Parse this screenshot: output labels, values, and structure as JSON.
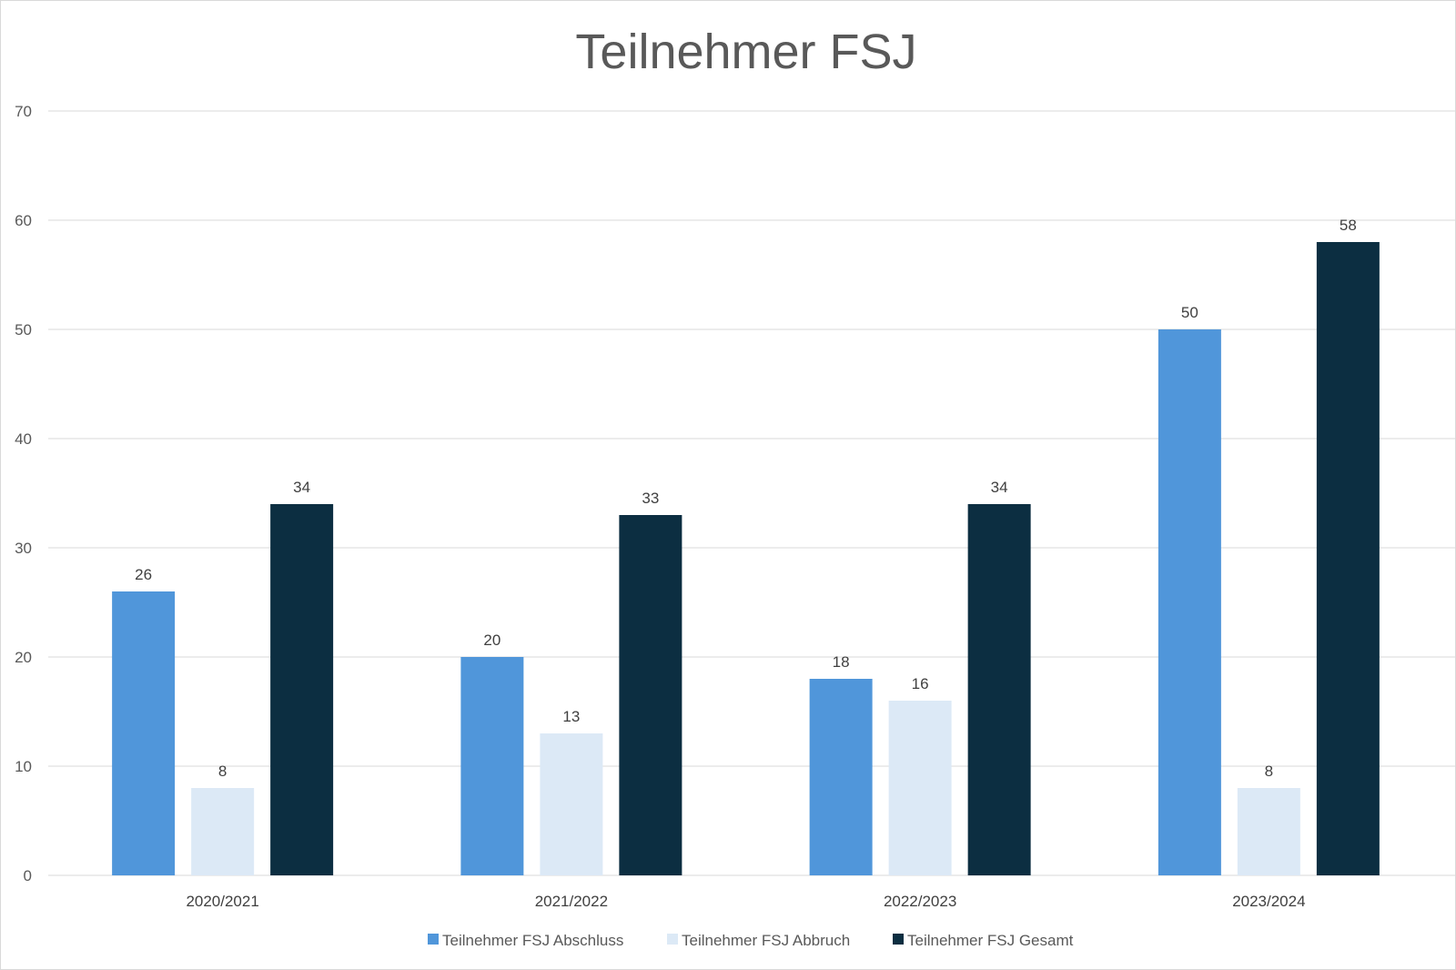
{
  "chart_data": {
    "type": "bar",
    "title": "Teilnehmer FSJ",
    "xlabel": "",
    "ylabel": "",
    "ylim": [
      0,
      70
    ],
    "yticks": [
      0,
      10,
      20,
      30,
      40,
      50,
      60,
      70
    ],
    "grid": true,
    "legend_position": "bottom",
    "categories": [
      "2020/2021",
      "2021/2022",
      "2022/2023",
      "2023/2024"
    ],
    "series": [
      {
        "name": "Teilnehmer FSJ Abschluss",
        "color": "#5096da",
        "values": [
          26,
          20,
          18,
          50
        ]
      },
      {
        "name": "Teilnehmer FSJ Abbruch",
        "color": "#dce9f6",
        "values": [
          8,
          13,
          16,
          8
        ]
      },
      {
        "name": "Teilnehmer FSJ Gesamt",
        "color": "#0c2e41",
        "values": [
          34,
          33,
          34,
          58
        ]
      }
    ]
  }
}
